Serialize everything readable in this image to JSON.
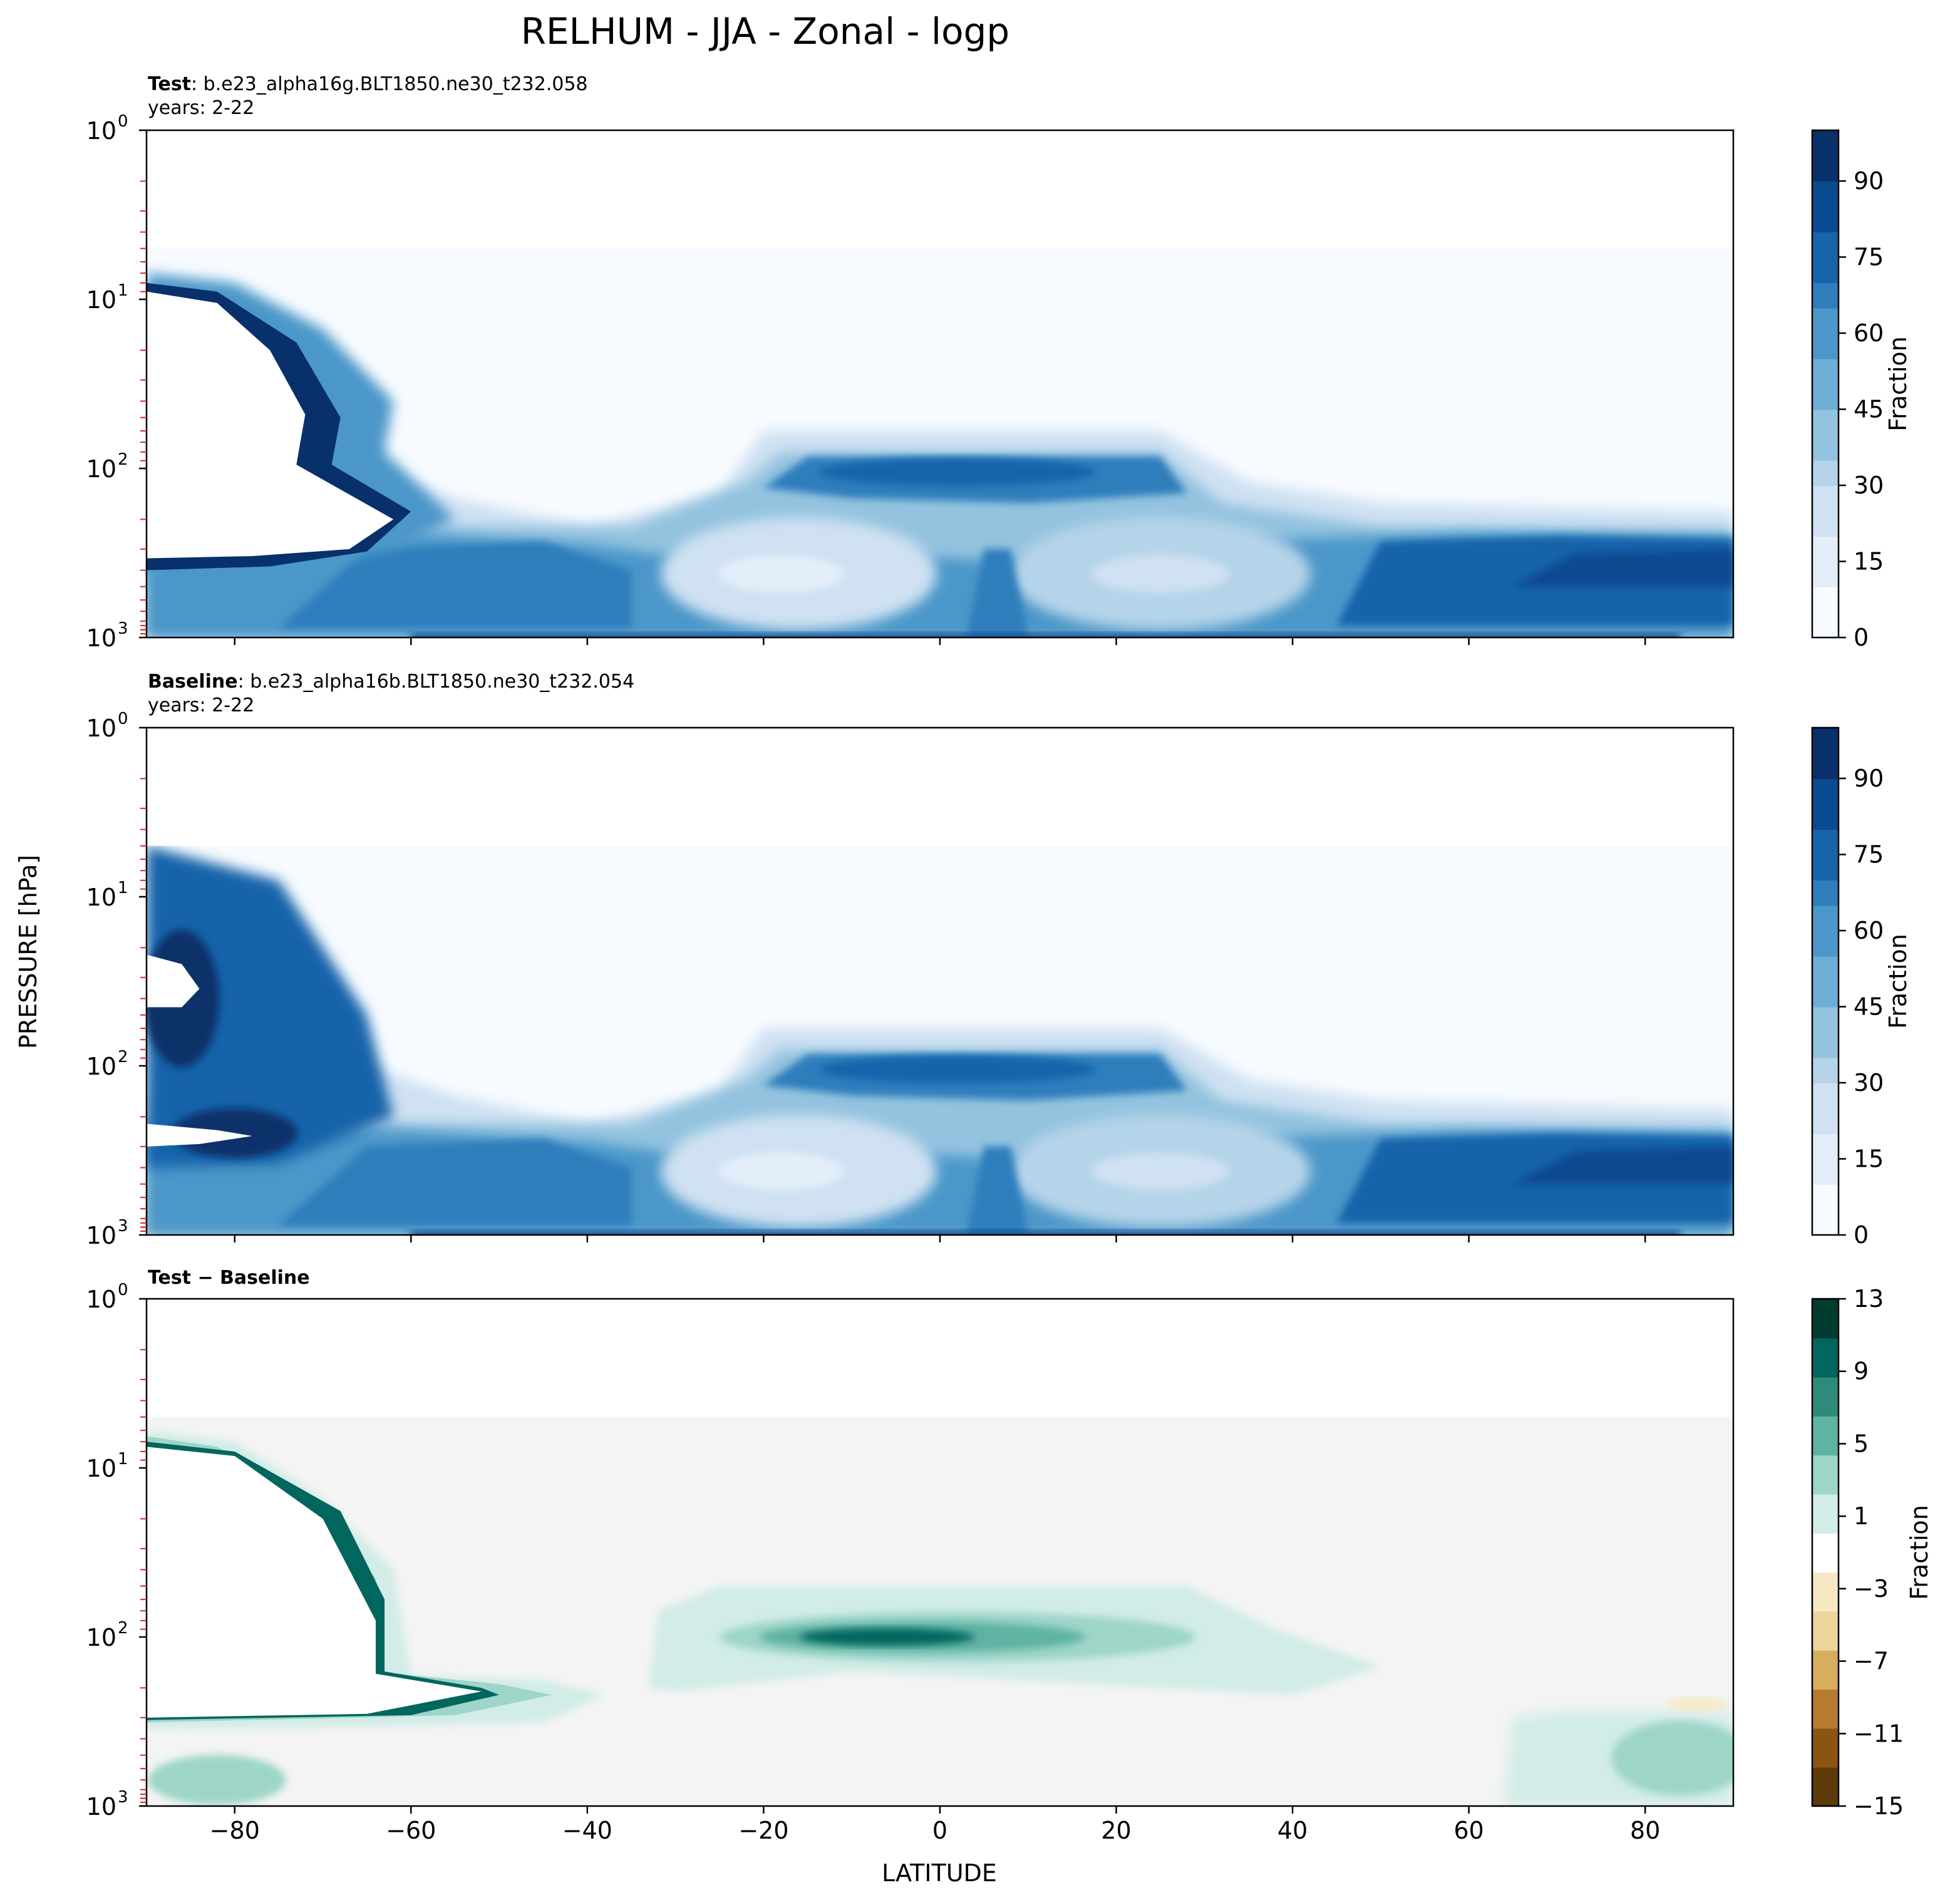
{
  "title": "RELHUM - JJA - Zonal - logp",
  "ylabel": "PRESSURE [hPa]",
  "xlabel": "LATITUDE",
  "xticks": [
    "−80",
    "−60",
    "−40",
    "−20",
    "0",
    "20",
    "40",
    "60",
    "80"
  ],
  "yticks": [
    {
      "base": "10",
      "exp": "0"
    },
    {
      "base": "10",
      "exp": "1"
    },
    {
      "base": "10",
      "exp": "2"
    },
    {
      "base": "10",
      "exp": "3"
    }
  ],
  "panels": [
    {
      "label_bold": "Test",
      "label_rest": ": b.e23_alpha16g.BLT1850.ne30_t232.058",
      "years": "years: 2-22",
      "colorbar_label": "Fraction",
      "colorbar_ticks": [
        "0",
        "15",
        "30",
        "45",
        "60",
        "75",
        "90"
      ],
      "colormap": "Blues"
    },
    {
      "label_bold": "Baseline",
      "label_rest": ": b.e23_alpha16b.BLT1850.ne30_t232.054",
      "years": "years: 2-22",
      "colorbar_label": "Fraction",
      "colorbar_ticks": [
        "0",
        "15",
        "30",
        "45",
        "60",
        "75",
        "90"
      ],
      "colormap": "Blues"
    },
    {
      "label_bold": "Test − Baseline",
      "label_rest": "",
      "years": "",
      "colorbar_label": "Fraction",
      "colorbar_ticks": [
        "−15",
        "−11",
        "−7",
        "−3",
        "1",
        "5",
        "9",
        "13"
      ],
      "colormap": "BrBG"
    }
  ],
  "colors": {
    "blues": [
      "#f7fbff",
      "#e3eef9",
      "#cfe1f2",
      "#b5d4e9",
      "#93c3df",
      "#6daed5",
      "#4b97c9",
      "#2f7ebc",
      "#1864aa",
      "#0a4a90",
      "#08306b"
    ],
    "brbg": [
      "#5e3c0a",
      "#8a5510",
      "#b87a2e",
      "#d7ae60",
      "#ecd49d",
      "#f6e8c3",
      "#ffffff",
      "#d2ece7",
      "#9dd5c9",
      "#5fb3a3",
      "#2e8b7a",
      "#01665e",
      "#003c30"
    ],
    "diff_background": "#f3f4f3",
    "tick_marks": "#d62728"
  },
  "chart_data": [
    {
      "type": "contour",
      "title": "Test: b.e23_alpha16g.BLT1850.ne30_t232.058",
      "xlabel": "LATITUDE",
      "ylabel": "PRESSURE [hPa]",
      "xlim": [
        -90,
        90
      ],
      "ylim": [
        1000,
        1
      ],
      "yscale": "log",
      "levels": [
        0,
        15,
        30,
        45,
        60,
        75,
        90
      ],
      "features": [
        {
          "name": "upper tropical maximum",
          "lat_range": [
            -20,
            25
          ],
          "pressure_hPa": 100,
          "value": 85
        },
        {
          "name": "lower-tropospheric band",
          "lat_range": [
            -60,
            90
          ],
          "pressure_hPa": [
            250,
            900
          ],
          "value": 70
        },
        {
          "name": "Antarctic stratospheric edge",
          "lat_range": [
            -90,
            -55
          ],
          "pressure_hPa": [
            8,
            200
          ],
          "value": 95
        }
      ]
    },
    {
      "type": "contour",
      "title": "Baseline: b.e23_alpha16b.BLT1850.ne30_t232.054",
      "xlabel": "LATITUDE",
      "ylabel": "PRESSURE [hPa]",
      "xlim": [
        -90,
        90
      ],
      "ylim": [
        1000,
        1
      ],
      "yscale": "log",
      "levels": [
        0,
        15,
        30,
        45,
        60,
        75,
        90
      ]
    },
    {
      "type": "contour",
      "title": "Test − Baseline",
      "xlabel": "LATITUDE",
      "ylabel": "PRESSURE [hPa]",
      "xlim": [
        -90,
        90
      ],
      "ylim": [
        1000,
        1
      ],
      "yscale": "log",
      "levels": [
        -15,
        -11,
        -7,
        -3,
        1,
        5,
        9,
        13
      ],
      "features": [
        {
          "name": "tropical upper positive",
          "lat_range": [
            -30,
            30
          ],
          "pressure_hPa": 100,
          "value": 11
        },
        {
          "name": "Antarctic edge positive",
          "lat_range": [
            -90,
            -40
          ],
          "pressure_hPa": [
            7,
            300
          ],
          "value": 13
        }
      ]
    }
  ]
}
